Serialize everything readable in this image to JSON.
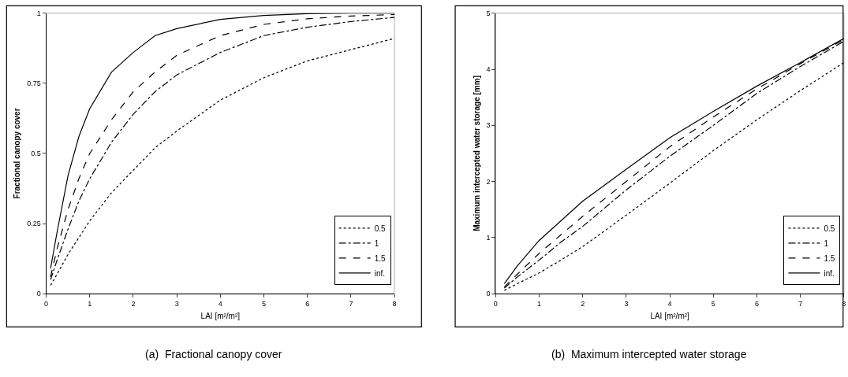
{
  "chart_data": [
    {
      "type": "line",
      "title": "(a)  Fractional canopy cover",
      "xlabel": "LAI [m²/m²]",
      "ylabel": "Fractional canopy cover",
      "xlim": [
        0,
        8
      ],
      "xticks": [
        0,
        1,
        2,
        3,
        4,
        5,
        6,
        7,
        8
      ],
      "ylim": [
        0,
        1
      ],
      "yticks": [
        0,
        0.25,
        0.5,
        0.75,
        1
      ],
      "grid": false,
      "legend": "bottom right",
      "marker": "none",
      "x": [
        0.1,
        0.25,
        0.5,
        0.75,
        1,
        1.5,
        2,
        2.5,
        3,
        4,
        5,
        6,
        7,
        8
      ],
      "series": [
        {
          "name": "0.5",
          "color": "#000000",
          "line_style": "dotted",
          "values": [
            0.03,
            0.07,
            0.14,
            0.2,
            0.26,
            0.36,
            0.44,
            0.52,
            0.58,
            0.69,
            0.77,
            0.83,
            0.87,
            0.91
          ]
        },
        {
          "name": "1",
          "color": "#000000",
          "line_style": "dashdot",
          "values": [
            0.05,
            0.12,
            0.23,
            0.33,
            0.41,
            0.54,
            0.64,
            0.72,
            0.78,
            0.86,
            0.92,
            0.95,
            0.97,
            0.985
          ]
        },
        {
          "name": "1.5",
          "color": "#000000",
          "line_style": "dashed",
          "values": [
            0.06,
            0.16,
            0.3,
            0.41,
            0.5,
            0.62,
            0.72,
            0.79,
            0.85,
            0.92,
            0.96,
            0.98,
            0.99,
            0.995
          ]
        },
        {
          "name": "inf.",
          "color": "#000000",
          "line_style": "solid",
          "values": [
            0.09,
            0.22,
            0.42,
            0.56,
            0.66,
            0.79,
            0.86,
            0.92,
            0.945,
            0.978,
            0.992,
            0.998,
            1.0,
            1.0
          ]
        }
      ]
    },
    {
      "type": "line",
      "title": "(b)  Maximum intercepted water storage",
      "xlabel": "LAI [m²/m²]",
      "ylabel": "Maximum intercepted water storage [mm]",
      "xlim": [
        0,
        8
      ],
      "xticks": [
        0,
        1,
        2,
        3,
        4,
        5,
        6,
        7,
        8
      ],
      "ylim": [
        0,
        5
      ],
      "yticks": [
        0,
        1,
        2,
        3,
        4,
        5
      ],
      "grid": false,
      "legend": "bottom right",
      "marker": "none",
      "x": [
        0.2,
        0.5,
        1,
        1.5,
        2,
        3,
        4,
        5,
        6,
        7,
        8
      ],
      "series": [
        {
          "name": "0.5",
          "color": "#000000",
          "line_style": "dotted",
          "values": [
            0.06,
            0.18,
            0.37,
            0.6,
            0.84,
            1.4,
            1.97,
            2.55,
            3.1,
            3.62,
            4.12
          ]
        },
        {
          "name": "1",
          "color": "#000000",
          "line_style": "dashdot",
          "values": [
            0.1,
            0.3,
            0.6,
            0.92,
            1.2,
            1.85,
            2.45,
            3.0,
            3.57,
            4.05,
            4.5
          ]
        },
        {
          "name": "1.5",
          "color": "#000000",
          "line_style": "dashed",
          "values": [
            0.12,
            0.35,
            0.72,
            1.05,
            1.38,
            2.0,
            2.62,
            3.15,
            3.65,
            4.1,
            4.53
          ]
        },
        {
          "name": "inf.",
          "color": "#000000",
          "line_style": "solid",
          "values": [
            0.18,
            0.5,
            0.95,
            1.3,
            1.65,
            2.22,
            2.78,
            3.25,
            3.7,
            4.12,
            4.55
          ]
        }
      ]
    }
  ]
}
